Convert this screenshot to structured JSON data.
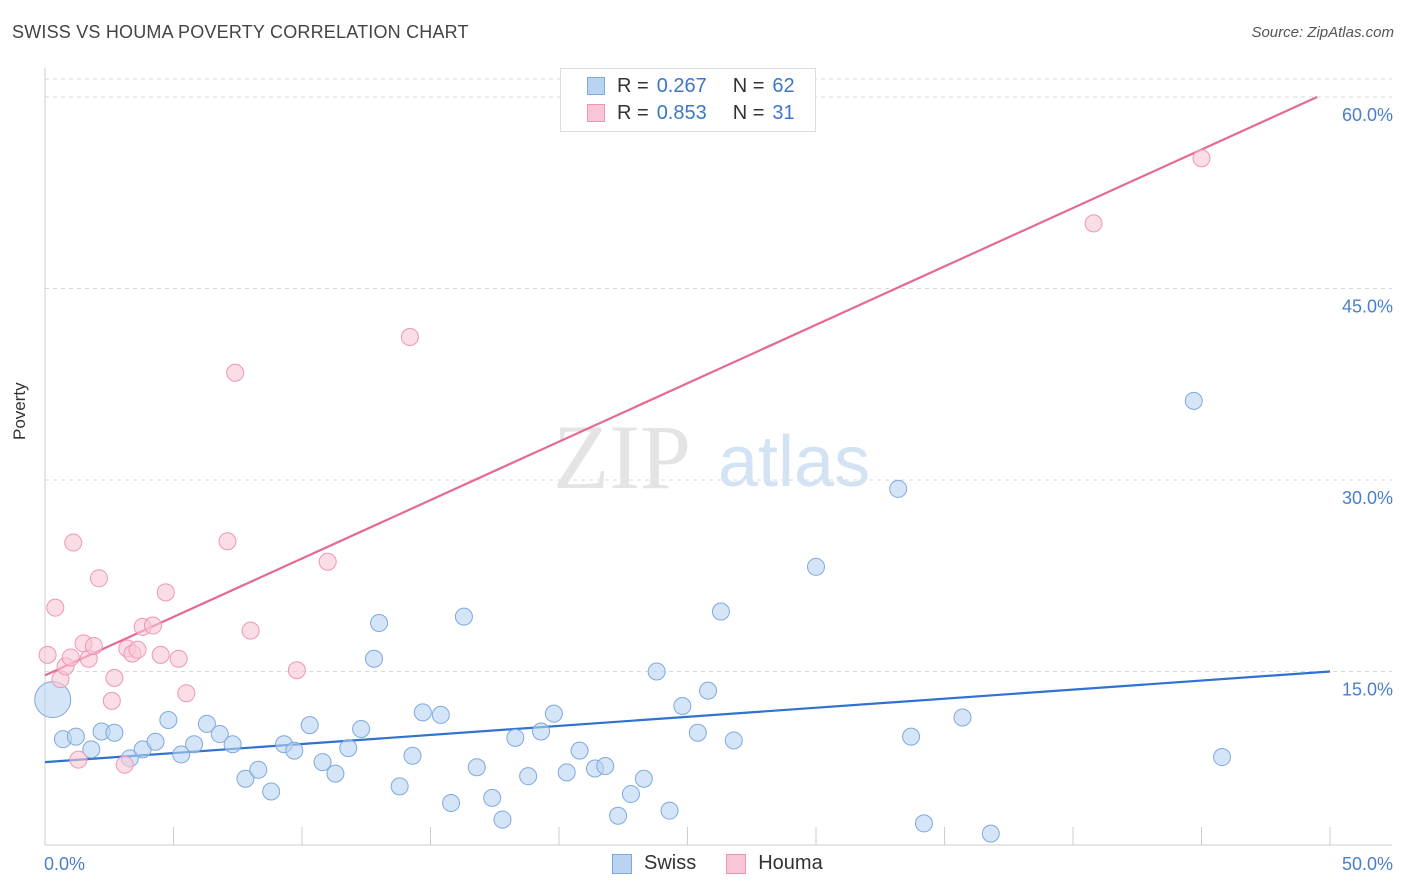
{
  "title": "SWISS VS HOUMA POVERTY CORRELATION CHART",
  "source": "Source: ZipAtlas.com",
  "watermark": {
    "zip": "ZIP",
    "atlas": "atlas"
  },
  "legend_top": [
    {
      "r_label": "R =",
      "r_value": "0.267",
      "n_label": "N =",
      "n_value": "62"
    },
    {
      "r_label": "R =",
      "r_value": "0.853",
      "n_label": "N =",
      "n_value": "31"
    }
  ],
  "colors": {
    "swiss_fill": "#b8d4f2",
    "swiss_stroke": "#7fa9dc",
    "swiss_line": "#2f72cf",
    "houma_fill": "#f8c6d6",
    "houma_stroke": "#ee97b5",
    "houma_line": "#e46a95",
    "tick_label": "#4a7ecb",
    "grid": "#d8d8d8"
  },
  "chart_data": {
    "type": "scatter",
    "title": "SWISS VS HOUMA POVERTY CORRELATION CHART",
    "xlabel": "",
    "ylabel": "Poverty",
    "xlim": [
      0,
      50
    ],
    "ylim": [
      0,
      60
    ],
    "x_tick_labels": [
      {
        "value": 0,
        "label": "0.0%"
      },
      {
        "value": 50,
        "label": "50.0%"
      }
    ],
    "y_tick_labels": [
      {
        "value": 15,
        "label": "15.0%"
      },
      {
        "value": 30,
        "label": "30.0%"
      },
      {
        "value": 45,
        "label": "45.0%"
      },
      {
        "value": 60,
        "label": "60.0%"
      }
    ],
    "legend_position": "bottom-center",
    "series": [
      {
        "name": "Swiss",
        "r": 0.267,
        "n": 62,
        "trend": {
          "x": [
            0,
            50
          ],
          "y": [
            7.9,
            15.0
          ]
        },
        "points": [
          [
            0.3,
            12.8,
            "big"
          ],
          [
            0.7,
            9.7
          ],
          [
            1.2,
            9.9
          ],
          [
            1.8,
            8.9
          ],
          [
            2.2,
            10.3
          ],
          [
            2.7,
            10.2
          ],
          [
            3.3,
            8.2
          ],
          [
            3.8,
            8.9
          ],
          [
            4.3,
            9.5
          ],
          [
            4.8,
            11.2
          ],
          [
            5.3,
            8.5
          ],
          [
            5.8,
            9.3
          ],
          [
            6.3,
            10.9
          ],
          [
            6.8,
            10.1
          ],
          [
            7.3,
            9.3
          ],
          [
            7.8,
            6.6
          ],
          [
            8.3,
            7.3
          ],
          [
            8.8,
            5.6
          ],
          [
            9.3,
            9.3
          ],
          [
            9.7,
            8.8
          ],
          [
            10.3,
            10.8
          ],
          [
            10.8,
            7.9
          ],
          [
            11.3,
            7.0
          ],
          [
            11.8,
            9.0
          ],
          [
            12.3,
            10.5
          ],
          [
            12.8,
            16.0
          ],
          [
            13.0,
            18.8
          ],
          [
            13.8,
            6.0
          ],
          [
            14.3,
            8.4
          ],
          [
            14.7,
            11.8
          ],
          [
            15.4,
            11.6
          ],
          [
            15.8,
            4.7
          ],
          [
            16.3,
            19.3
          ],
          [
            16.8,
            7.5
          ],
          [
            17.4,
            5.1
          ],
          [
            17.8,
            3.4
          ],
          [
            18.3,
            9.8
          ],
          [
            18.8,
            6.8
          ],
          [
            19.3,
            10.3
          ],
          [
            19.8,
            11.7
          ],
          [
            20.3,
            7.1
          ],
          [
            20.8,
            8.8
          ],
          [
            21.4,
            7.4
          ],
          [
            21.8,
            7.6
          ],
          [
            22.3,
            3.7
          ],
          [
            22.8,
            5.4
          ],
          [
            23.3,
            6.6
          ],
          [
            23.8,
            15.0
          ],
          [
            24.3,
            4.1
          ],
          [
            24.8,
            12.3
          ],
          [
            25.4,
            10.2
          ],
          [
            25.8,
            13.5
          ],
          [
            26.3,
            19.7
          ],
          [
            26.8,
            9.6
          ],
          [
            30.0,
            23.2
          ],
          [
            33.2,
            29.3
          ],
          [
            33.7,
            9.9
          ],
          [
            34.2,
            3.1
          ],
          [
            35.7,
            11.4
          ],
          [
            36.8,
            2.3
          ],
          [
            44.7,
            36.2
          ],
          [
            45.8,
            8.3
          ]
        ]
      },
      {
        "name": "Houma",
        "r": 0.853,
        "n": 31,
        "trend": {
          "x": [
            0,
            49.5
          ],
          "y": [
            14.7,
            60.0
          ]
        },
        "points": [
          [
            0.1,
            16.3
          ],
          [
            0.4,
            20.0
          ],
          [
            0.6,
            14.4
          ],
          [
            0.8,
            15.4
          ],
          [
            1.0,
            16.1
          ],
          [
            1.1,
            25.1
          ],
          [
            1.3,
            8.1
          ],
          [
            1.5,
            17.2
          ],
          [
            1.7,
            16.0
          ],
          [
            1.9,
            17.0
          ],
          [
            2.1,
            22.3
          ],
          [
            2.6,
            12.7
          ],
          [
            2.7,
            14.5
          ],
          [
            3.1,
            7.7
          ],
          [
            3.2,
            16.8
          ],
          [
            3.4,
            16.4
          ],
          [
            3.6,
            16.7
          ],
          [
            3.8,
            18.5
          ],
          [
            4.2,
            18.6
          ],
          [
            4.5,
            16.3
          ],
          [
            4.7,
            21.2
          ],
          [
            5.2,
            16.0
          ],
          [
            5.5,
            13.3
          ],
          [
            7.1,
            25.2
          ],
          [
            7.4,
            38.4
          ],
          [
            8.0,
            18.2
          ],
          [
            9.8,
            15.1
          ],
          [
            11.0,
            23.6
          ],
          [
            14.2,
            41.2
          ],
          [
            40.8,
            50.1
          ],
          [
            45.0,
            55.2
          ]
        ]
      }
    ]
  },
  "legend_bottom": [
    {
      "label": "Swiss"
    },
    {
      "label": "Houma"
    }
  ]
}
